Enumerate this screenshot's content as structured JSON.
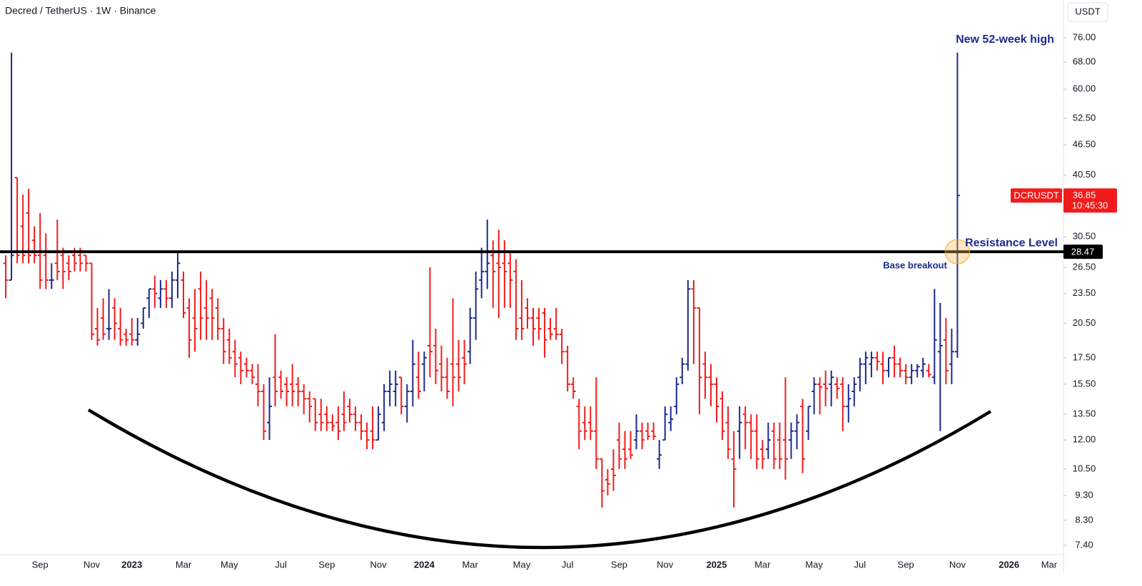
{
  "chart_data": {
    "type": "ohlc",
    "title": "Decred / TetherUS · 1W · Binance",
    "currency": "USDT",
    "log_scale": true,
    "ylim": [
      7.09,
      90.4
    ],
    "yticks": [
      {
        "value": 7.4,
        "label": "7.40"
      },
      {
        "value": 8.3,
        "label": "8.30"
      },
      {
        "value": 9.3,
        "label": "9.30"
      },
      {
        "value": 10.5,
        "label": "10.50"
      },
      {
        "value": 12,
        "label": "12.00"
      },
      {
        "value": 13.5,
        "label": "13.50"
      },
      {
        "value": 15.5,
        "label": "15.50"
      },
      {
        "value": 17.5,
        "label": "17.50"
      },
      {
        "value": 20.5,
        "label": "20.50"
      },
      {
        "value": 23.5,
        "label": "23.50"
      },
      {
        "value": 26.5,
        "label": "26.50"
      },
      {
        "value": 30.5,
        "label": "30.50"
      },
      {
        "value": 40.5,
        "label": "40.50"
      },
      {
        "value": 46.5,
        "label": "46.50"
      },
      {
        "value": 52.5,
        "label": "52.50"
      },
      {
        "value": 60,
        "label": "60.00"
      },
      {
        "value": 68,
        "label": "68.00"
      },
      {
        "value": 76,
        "label": "76.00"
      }
    ],
    "up_color": "#1b2a8c",
    "down_color": "#f21b1b",
    "categories": [
      null,
      null,
      null,
      null,
      null,
      null,
      "Sep",
      null,
      null,
      null,
      null,
      null,
      null,
      null,
      null,
      "Nov",
      null,
      null,
      null,
      null,
      null,
      null,
      "2023",
      null,
      null,
      null,
      null,
      null,
      null,
      null,
      null,
      "Mar",
      null,
      null,
      null,
      null,
      null,
      null,
      null,
      "May",
      null,
      null,
      null,
      null,
      null,
      null,
      null,
      null,
      "Jul",
      null,
      null,
      null,
      null,
      null,
      null,
      null,
      "Sep",
      null,
      null,
      null,
      null,
      null,
      null,
      null,
      null,
      "Nov",
      null,
      null,
      null,
      null,
      null,
      null,
      null,
      "2024",
      null,
      null,
      null,
      null,
      null,
      null,
      null,
      "Mar",
      null,
      null,
      null,
      null,
      null,
      null,
      null,
      null,
      "May",
      null,
      null,
      null,
      null,
      null,
      null,
      null,
      "Jul",
      null,
      null,
      null,
      null,
      null,
      null,
      null,
      null,
      "Sep",
      null,
      null,
      null,
      null,
      null,
      null,
      null,
      "Nov",
      null,
      null,
      null,
      null,
      null,
      null,
      null,
      null,
      "2025",
      null,
      null,
      null,
      null,
      null,
      null,
      null,
      "Mar",
      null,
      null,
      null,
      null,
      null,
      null,
      null,
      null,
      "May",
      null,
      null,
      null,
      null,
      null,
      null,
      null,
      "Jul",
      null,
      null,
      null,
      null,
      null,
      null,
      null,
      "Sep",
      null,
      null,
      null,
      null,
      null,
      null,
      null,
      null,
      "Nov",
      null,
      null,
      null,
      null,
      null,
      null,
      null,
      null,
      "2026",
      null,
      null,
      null,
      null,
      null,
      null,
      "Mar",
      null,
      null
    ],
    "ohlc": [
      [
        27,
        28,
        23,
        25
      ],
      [
        25,
        71,
        25,
        28
      ],
      [
        40,
        40,
        27,
        28
      ],
      [
        32,
        37,
        27,
        28
      ],
      [
        34,
        38,
        27,
        28
      ],
      [
        30,
        32,
        27,
        28
      ],
      [
        28,
        34,
        24,
        25
      ],
      [
        28,
        31,
        24,
        25
      ],
      [
        25,
        27,
        24,
        25
      ],
      [
        27,
        33,
        25,
        26
      ],
      [
        28,
        29,
        24,
        26
      ],
      [
        27,
        28,
        25,
        26
      ],
      [
        28,
        29,
        26,
        27
      ],
      [
        28,
        29,
        26,
        27
      ],
      [
        28,
        28,
        26,
        27
      ],
      [
        27,
        27,
        19,
        19.5
      ],
      [
        20,
        22,
        18.5,
        19
      ],
      [
        21,
        23,
        19,
        19.5
      ],
      [
        20,
        24,
        19,
        20
      ],
      [
        22,
        23,
        19,
        20.5
      ],
      [
        20,
        22,
        18.5,
        19
      ],
      [
        19.5,
        20,
        18.5,
        19
      ],
      [
        19.5,
        21,
        18.5,
        19
      ],
      [
        19,
        21,
        18.5,
        19.5
      ],
      [
        20.5,
        22,
        20,
        22
      ],
      [
        23,
        24,
        21,
        24
      ],
      [
        24,
        25.5,
        22,
        23.5
      ],
      [
        23,
        25,
        22,
        24
      ],
      [
        24,
        25,
        22,
        23
      ],
      [
        23,
        26,
        22,
        25
      ],
      [
        25,
        28.5,
        23,
        27
      ],
      [
        25,
        26,
        21,
        21.5
      ],
      [
        22,
        23,
        17.5,
        19
      ],
      [
        21,
        24,
        18,
        20
      ],
      [
        24,
        26,
        19,
        21
      ],
      [
        22,
        25,
        19,
        21
      ],
      [
        23,
        24,
        19,
        21
      ],
      [
        22,
        23,
        19,
        20
      ],
      [
        20,
        21,
        17,
        18
      ],
      [
        19,
        20,
        17,
        17.5
      ],
      [
        18,
        19,
        16,
        17
      ],
      [
        17.5,
        18,
        15.5,
        16.5
      ],
      [
        17,
        17.5,
        16,
        16.5
      ],
      [
        16.5,
        17,
        15.5,
        16
      ],
      [
        15.5,
        17,
        14,
        15
      ],
      [
        15,
        15.5,
        12,
        12.5
      ],
      [
        13,
        16,
        12,
        14
      ],
      [
        16,
        19.5,
        14,
        15
      ],
      [
        16,
        16.5,
        14.5,
        15
      ],
      [
        15.5,
        16,
        14,
        15
      ],
      [
        15.5,
        17,
        14,
        15
      ],
      [
        15.5,
        16,
        14,
        15
      ],
      [
        15,
        15.5,
        13.5,
        14.5
      ],
      [
        14.5,
        15,
        13,
        14
      ],
      [
        14.5,
        14.5,
        12.5,
        13
      ],
      [
        13.5,
        14.5,
        12.5,
        13
      ],
      [
        13.5,
        14,
        12.5,
        13
      ],
      [
        13,
        13.5,
        12.5,
        12.8
      ],
      [
        13,
        14,
        12,
        12.5
      ],
      [
        13.5,
        15,
        12.5,
        13
      ],
      [
        14,
        14.5,
        13,
        13.5
      ],
      [
        13.5,
        14,
        12.5,
        13
      ],
      [
        13,
        13.5,
        12,
        12.5
      ],
      [
        12.5,
        13,
        11.5,
        12
      ],
      [
        12.5,
        14,
        11.5,
        12
      ],
      [
        12,
        14,
        12,
        13.5
      ],
      [
        13,
        15.5,
        12.5,
        15
      ],
      [
        15,
        16.5,
        14,
        15.5
      ],
      [
        15,
        16.5,
        14,
        15.5
      ],
      [
        16,
        16,
        13.5,
        14
      ],
      [
        14,
        15.5,
        13,
        15
      ],
      [
        15,
        19,
        14,
        17
      ],
      [
        16,
        18,
        14.5,
        15
      ],
      [
        17,
        18,
        15,
        17.5
      ],
      [
        18.5,
        26.5,
        16,
        18
      ],
      [
        18.5,
        20,
        15.5,
        16.5
      ],
      [
        17,
        18.5,
        15,
        16
      ],
      [
        16,
        17.5,
        14.5,
        15
      ],
      [
        17,
        23,
        14,
        16
      ],
      [
        17,
        19,
        15,
        16
      ],
      [
        17.5,
        19,
        15.5,
        17
      ],
      [
        18,
        22,
        17,
        21
      ],
      [
        21,
        26,
        19,
        24
      ],
      [
        25,
        29,
        23,
        26
      ],
      [
        26,
        33,
        24,
        27
      ],
      [
        28,
        30,
        22,
        26
      ],
      [
        27,
        31.5,
        21,
        26.5
      ],
      [
        27,
        30,
        22,
        26
      ],
      [
        27,
        28.5,
        22,
        25
      ],
      [
        26,
        27.5,
        19,
        20
      ],
      [
        21,
        25,
        19,
        20
      ],
      [
        22,
        23,
        20,
        21
      ],
      [
        21,
        22,
        18.5,
        20
      ],
      [
        21,
        22,
        19,
        20
      ],
      [
        21.5,
        22,
        17.5,
        19
      ],
      [
        20,
        21,
        19,
        19.5
      ],
      [
        20,
        22,
        19,
        19.5
      ],
      [
        19.5,
        20,
        17,
        18
      ],
      [
        18,
        18.5,
        15,
        15.5
      ],
      [
        15.5,
        16,
        14.5,
        15
      ],
      [
        14,
        14.5,
        11.5,
        12.5
      ],
      [
        13,
        14,
        12,
        12.5
      ],
      [
        13,
        14,
        12,
        12.5
      ],
      [
        12.5,
        16,
        10.5,
        11
      ],
      [
        11,
        11,
        8.8,
        9.5
      ],
      [
        10,
        10.5,
        9.3,
        9.8
      ],
      [
        10.5,
        11.5,
        9.5,
        10.2
      ],
      [
        12,
        13,
        10.5,
        11
      ],
      [
        11.5,
        12.5,
        10.5,
        11
      ],
      [
        11.5,
        12.5,
        11,
        11.2
      ],
      [
        12,
        13.5,
        11.5,
        12.5
      ],
      [
        12.5,
        13,
        11.5,
        12
      ],
      [
        12.5,
        13,
        12,
        12.2
      ],
      [
        12.5,
        13,
        12,
        12.2
      ],
      [
        11,
        12,
        10.5,
        11.2
      ],
      [
        12,
        14,
        12,
        13.5
      ],
      [
        13,
        14,
        12.5,
        13.2
      ],
      [
        14,
        16,
        13.5,
        15.5
      ],
      [
        16,
        17.5,
        15.5,
        17
      ],
      [
        17,
        25,
        16.5,
        24
      ],
      [
        24,
        25,
        17,
        22
      ],
      [
        22,
        22,
        13.5,
        16
      ],
      [
        17,
        18,
        14.5,
        16
      ],
      [
        16,
        17,
        14,
        15.5
      ],
      [
        15.5,
        16,
        13,
        14
      ],
      [
        14.5,
        15,
        12,
        12.5
      ],
      [
        13,
        14,
        11,
        11.5
      ],
      [
        11,
        12.5,
        8.8,
        10.5
      ],
      [
        12.5,
        14,
        11,
        13
      ],
      [
        13.5,
        14,
        11.5,
        13
      ],
      [
        13,
        13.5,
        11,
        12.5
      ],
      [
        12.5,
        13.5,
        10.5,
        11
      ],
      [
        11.5,
        12,
        10.5,
        11
      ],
      [
        11.5,
        13,
        11,
        12
      ],
      [
        12.5,
        13,
        10.5,
        11
      ],
      [
        12,
        13,
        10.5,
        11
      ],
      [
        12,
        16,
        10,
        11
      ],
      [
        12,
        13,
        11,
        12.5
      ],
      [
        12.5,
        13.5,
        11.5,
        13
      ],
      [
        14,
        14.5,
        10.3,
        11
      ],
      [
        12.5,
        14,
        12,
        14
      ],
      [
        15,
        16,
        13.5,
        15.5
      ],
      [
        15.5,
        16,
        13.5,
        15.3
      ],
      [
        15.5,
        16.5,
        14,
        15.2
      ],
      [
        15.5,
        16.5,
        14,
        16
      ],
      [
        15.5,
        16,
        14.5,
        15.2
      ],
      [
        15.5,
        16,
        12.5,
        14
      ],
      [
        14,
        15.5,
        13,
        14.5
      ],
      [
        15,
        16,
        14,
        15.5
      ],
      [
        16,
        17.5,
        15,
        17
      ],
      [
        17,
        18,
        15.5,
        17.5
      ],
      [
        17,
        18,
        16,
        17.5
      ],
      [
        17.5,
        18,
        16.5,
        17.2
      ],
      [
        17,
        18,
        15.5,
        16.5
      ],
      [
        16.5,
        17.5,
        16,
        17.5
      ],
      [
        17.5,
        18.5,
        16,
        17
      ],
      [
        17,
        17.5,
        16,
        16.5
      ],
      [
        16.5,
        17,
        15.5,
        16
      ],
      [
        16,
        17,
        15.5,
        16.5
      ],
      [
        16.5,
        17,
        16,
        16.8
      ],
      [
        16.5,
        17.5,
        16,
        17
      ],
      [
        16.5,
        17,
        16,
        16.2
      ],
      [
        16,
        24,
        15.5,
        19
      ],
      [
        18,
        22.5,
        12.5,
        18.5
      ],
      [
        19,
        21,
        15.5,
        16.5
      ],
      [
        17,
        20,
        15.5,
        18
      ],
      [
        18,
        71,
        17.5,
        36.85
      ],
      null,
      null,
      null,
      null,
      null,
      null,
      null,
      null,
      null,
      null,
      null,
      null,
      null,
      null,
      null,
      null,
      null,
      null
    ],
    "resistance": {
      "label": "Resistance Level",
      "value": 28.47
    },
    "last_price": {
      "symbol": "DCRUSDT",
      "value": 36.85,
      "countdown": "10:45:30"
    },
    "annotations": [
      "New 52-week high",
      "Base breakout"
    ]
  }
}
